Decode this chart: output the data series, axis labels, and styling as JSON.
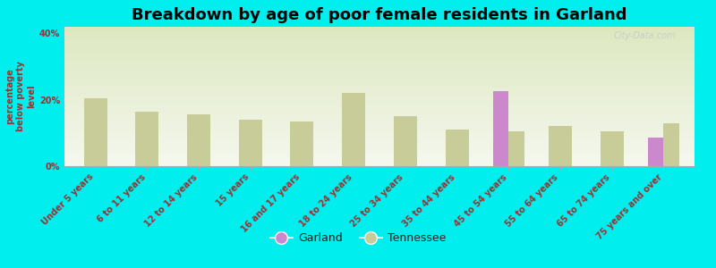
{
  "title": "Breakdown by age of poor female residents in Garland",
  "ylabel": "percentage\nbelow poverty\nlevel",
  "categories": [
    "Under 5 years",
    "6 to 11 years",
    "12 to 14 years",
    "15 years",
    "16 and 17 years",
    "18 to 24 years",
    "25 to 34 years",
    "35 to 44 years",
    "45 to 54 years",
    "55 to 64 years",
    "65 to 74 years",
    "75 years and over"
  ],
  "garland_values": [
    null,
    null,
    null,
    null,
    null,
    null,
    null,
    null,
    22.5,
    null,
    null,
    8.5
  ],
  "tennessee_values": [
    20.5,
    16.5,
    15.5,
    14.0,
    13.5,
    22.0,
    15.0,
    11.0,
    10.5,
    12.0,
    10.5,
    13.0
  ],
  "garland_color": "#cc88cc",
  "tennessee_color": "#c8cc99",
  "background_color": "#00eeee",
  "plot_bg_top": "#dde8c0",
  "plot_bg_bottom": "#f5f8ee",
  "ylim": [
    0,
    42
  ],
  "yticks": [
    0,
    20,
    40
  ],
  "ytick_labels": [
    "0%",
    "20%",
    "40%"
  ],
  "title_fontsize": 13,
  "axis_label_fontsize": 7,
  "tick_label_fontsize": 7,
  "bar_width": 0.3,
  "watermark": "City-Data.com"
}
